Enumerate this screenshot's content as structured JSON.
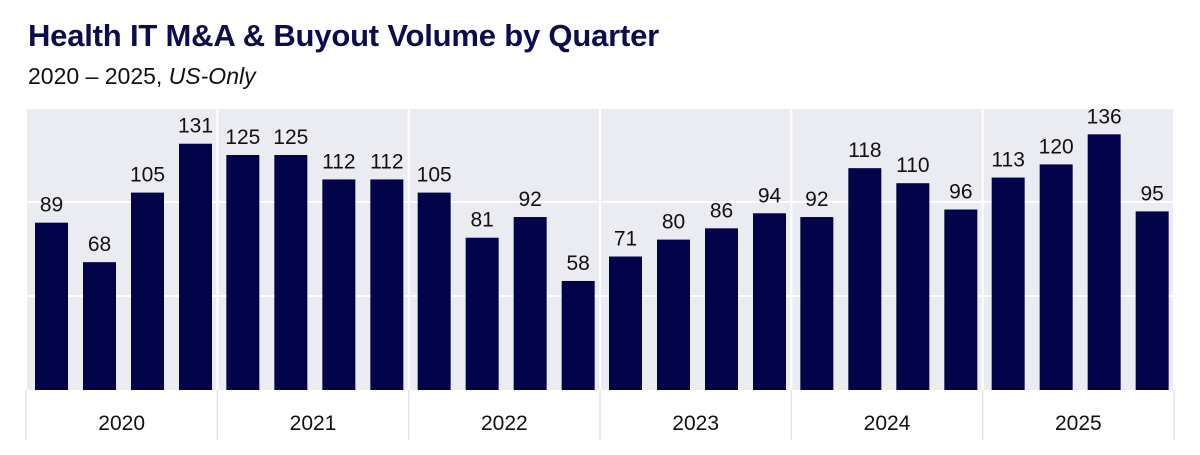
{
  "title": "Health IT M&A & Buyout Volume by Quarter",
  "subtitle": {
    "range": "2020 – 2025, ",
    "scope": "US-Only"
  },
  "colors": {
    "bar": "#03034a",
    "plot_bg": "#ebebf2",
    "gridline": "#ffffff",
    "text": "#111111",
    "title": "#0c0c4e"
  },
  "chart_data": {
    "type": "bar",
    "title": "Health IT M&A & Buyout Volume by Quarter",
    "subtitle": "2020 – 2025, US-Only",
    "groups": [
      {
        "label": "2020",
        "values": [
          89,
          68,
          105,
          131
        ]
      },
      {
        "label": "2021",
        "values": [
          125,
          125,
          112,
          112
        ]
      },
      {
        "label": "2022",
        "values": [
          105,
          81,
          92,
          58
        ]
      },
      {
        "label": "2023",
        "values": [
          71,
          80,
          86,
          94
        ]
      },
      {
        "label": "2024",
        "values": [
          92,
          118,
          110,
          96
        ]
      },
      {
        "label": "2025",
        "values": [
          113,
          120,
          136,
          95
        ]
      }
    ],
    "ylim": [
      0,
      150
    ],
    "yticks_hidden": true,
    "grid": true,
    "data_labels": true,
    "xlabel": "",
    "ylabel": ""
  }
}
